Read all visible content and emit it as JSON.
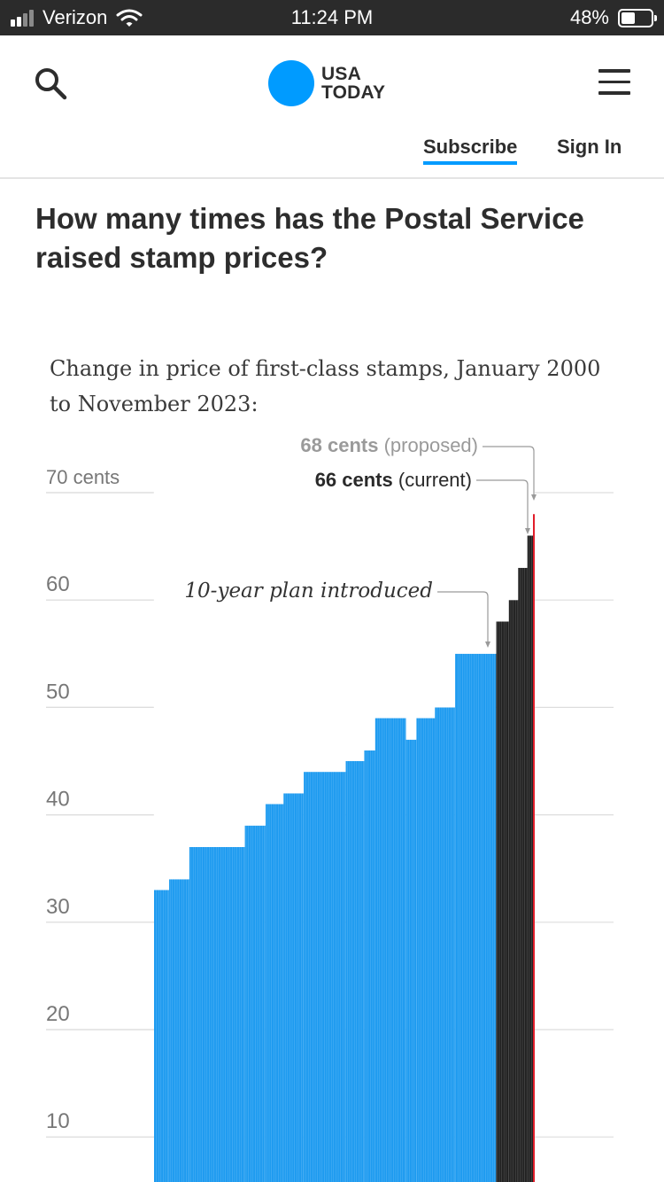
{
  "status_bar": {
    "carrier": "Verizon",
    "time": "11:24 PM",
    "battery": "48%",
    "battery_level": 0.48
  },
  "header": {
    "logo_text": [
      "USA",
      "TODAY"
    ],
    "subscribe": "Subscribe",
    "sign_in": "Sign In",
    "icons": {
      "search": "search-icon",
      "menu": "menu-icon"
    },
    "accent_color": "#009bff"
  },
  "article": {
    "headline": "How many times has the Postal Service raised stamp prices?",
    "chart_title": "Change in price of first-class stamps, January 2000 to November 2023:"
  },
  "chart_data": {
    "type": "bar",
    "title": "Change in price of first-class stamps, January 2000 to November 2023:",
    "xlabel": "",
    "ylabel": "",
    "ylim": [
      0,
      70
    ],
    "yticks": [
      10,
      20,
      30,
      40,
      50,
      60,
      70
    ],
    "ytick_labels": [
      "10",
      "20",
      "30",
      "40",
      "50",
      "60",
      "70 cents"
    ],
    "grid": true,
    "x_range": [
      "2000-01-01",
      "2023-11-01"
    ],
    "steps": [
      {
        "start": "2001-01-07",
        "cents": 33,
        "period": "before"
      },
      {
        "start": "2002-06-30",
        "cents": 34,
        "period": "before"
      },
      {
        "start": "2004-06-30",
        "cents": 37,
        "period": "before"
      },
      {
        "start": "2010-01-01",
        "cents": 39,
        "period": "before"
      },
      {
        "start": "2012-01-22",
        "cents": 41,
        "period": "before"
      },
      {
        "start": "2013-11-01",
        "cents": 42,
        "period": "before"
      },
      {
        "start": "2015-11-01",
        "cents": 44,
        "period": "before"
      },
      {
        "start": "2020-01-01",
        "cents": 45,
        "period": "before"
      },
      {
        "start": "2021-11-01",
        "cents": 46,
        "period": "before"
      },
      {
        "start": "2022-12-01",
        "cents": 49,
        "period": "before"
      },
      {
        "start": "2026-01-01",
        "cents": 47,
        "period": "before"
      },
      {
        "start": "2027-01-01",
        "cents": 49,
        "period": "before"
      },
      {
        "start": "2028-11-01",
        "cents": 50,
        "period": "before"
      },
      {
        "start": "2030-11-01",
        "cents": 55,
        "period": "before"
      },
      {
        "start": "2034-12-01",
        "cents": 58,
        "period": "after"
      },
      {
        "start": "2036-03-01",
        "cents": 60,
        "period": "after"
      },
      {
        "start": "2037-02-01",
        "cents": 63,
        "period": "after"
      },
      {
        "start": "2038-01-01",
        "cents": 66,
        "period": "after"
      },
      {
        "start": "2038-10-01",
        "cents": 66,
        "period": "end"
      }
    ],
    "x_end_label_note": "",
    "proposed_cents": 68,
    "colors": {
      "before": "#1e9bf0",
      "after": "#222222",
      "proposed": "#e11d2a",
      "grid": "#dddddd",
      "axis_text": "#777777"
    },
    "annotations": {
      "proposed": {
        "value": "68 cents",
        "note": "(proposed)"
      },
      "current": {
        "value": "66 cents",
        "note": "(current)"
      },
      "plan": "10-year plan introduced"
    }
  }
}
